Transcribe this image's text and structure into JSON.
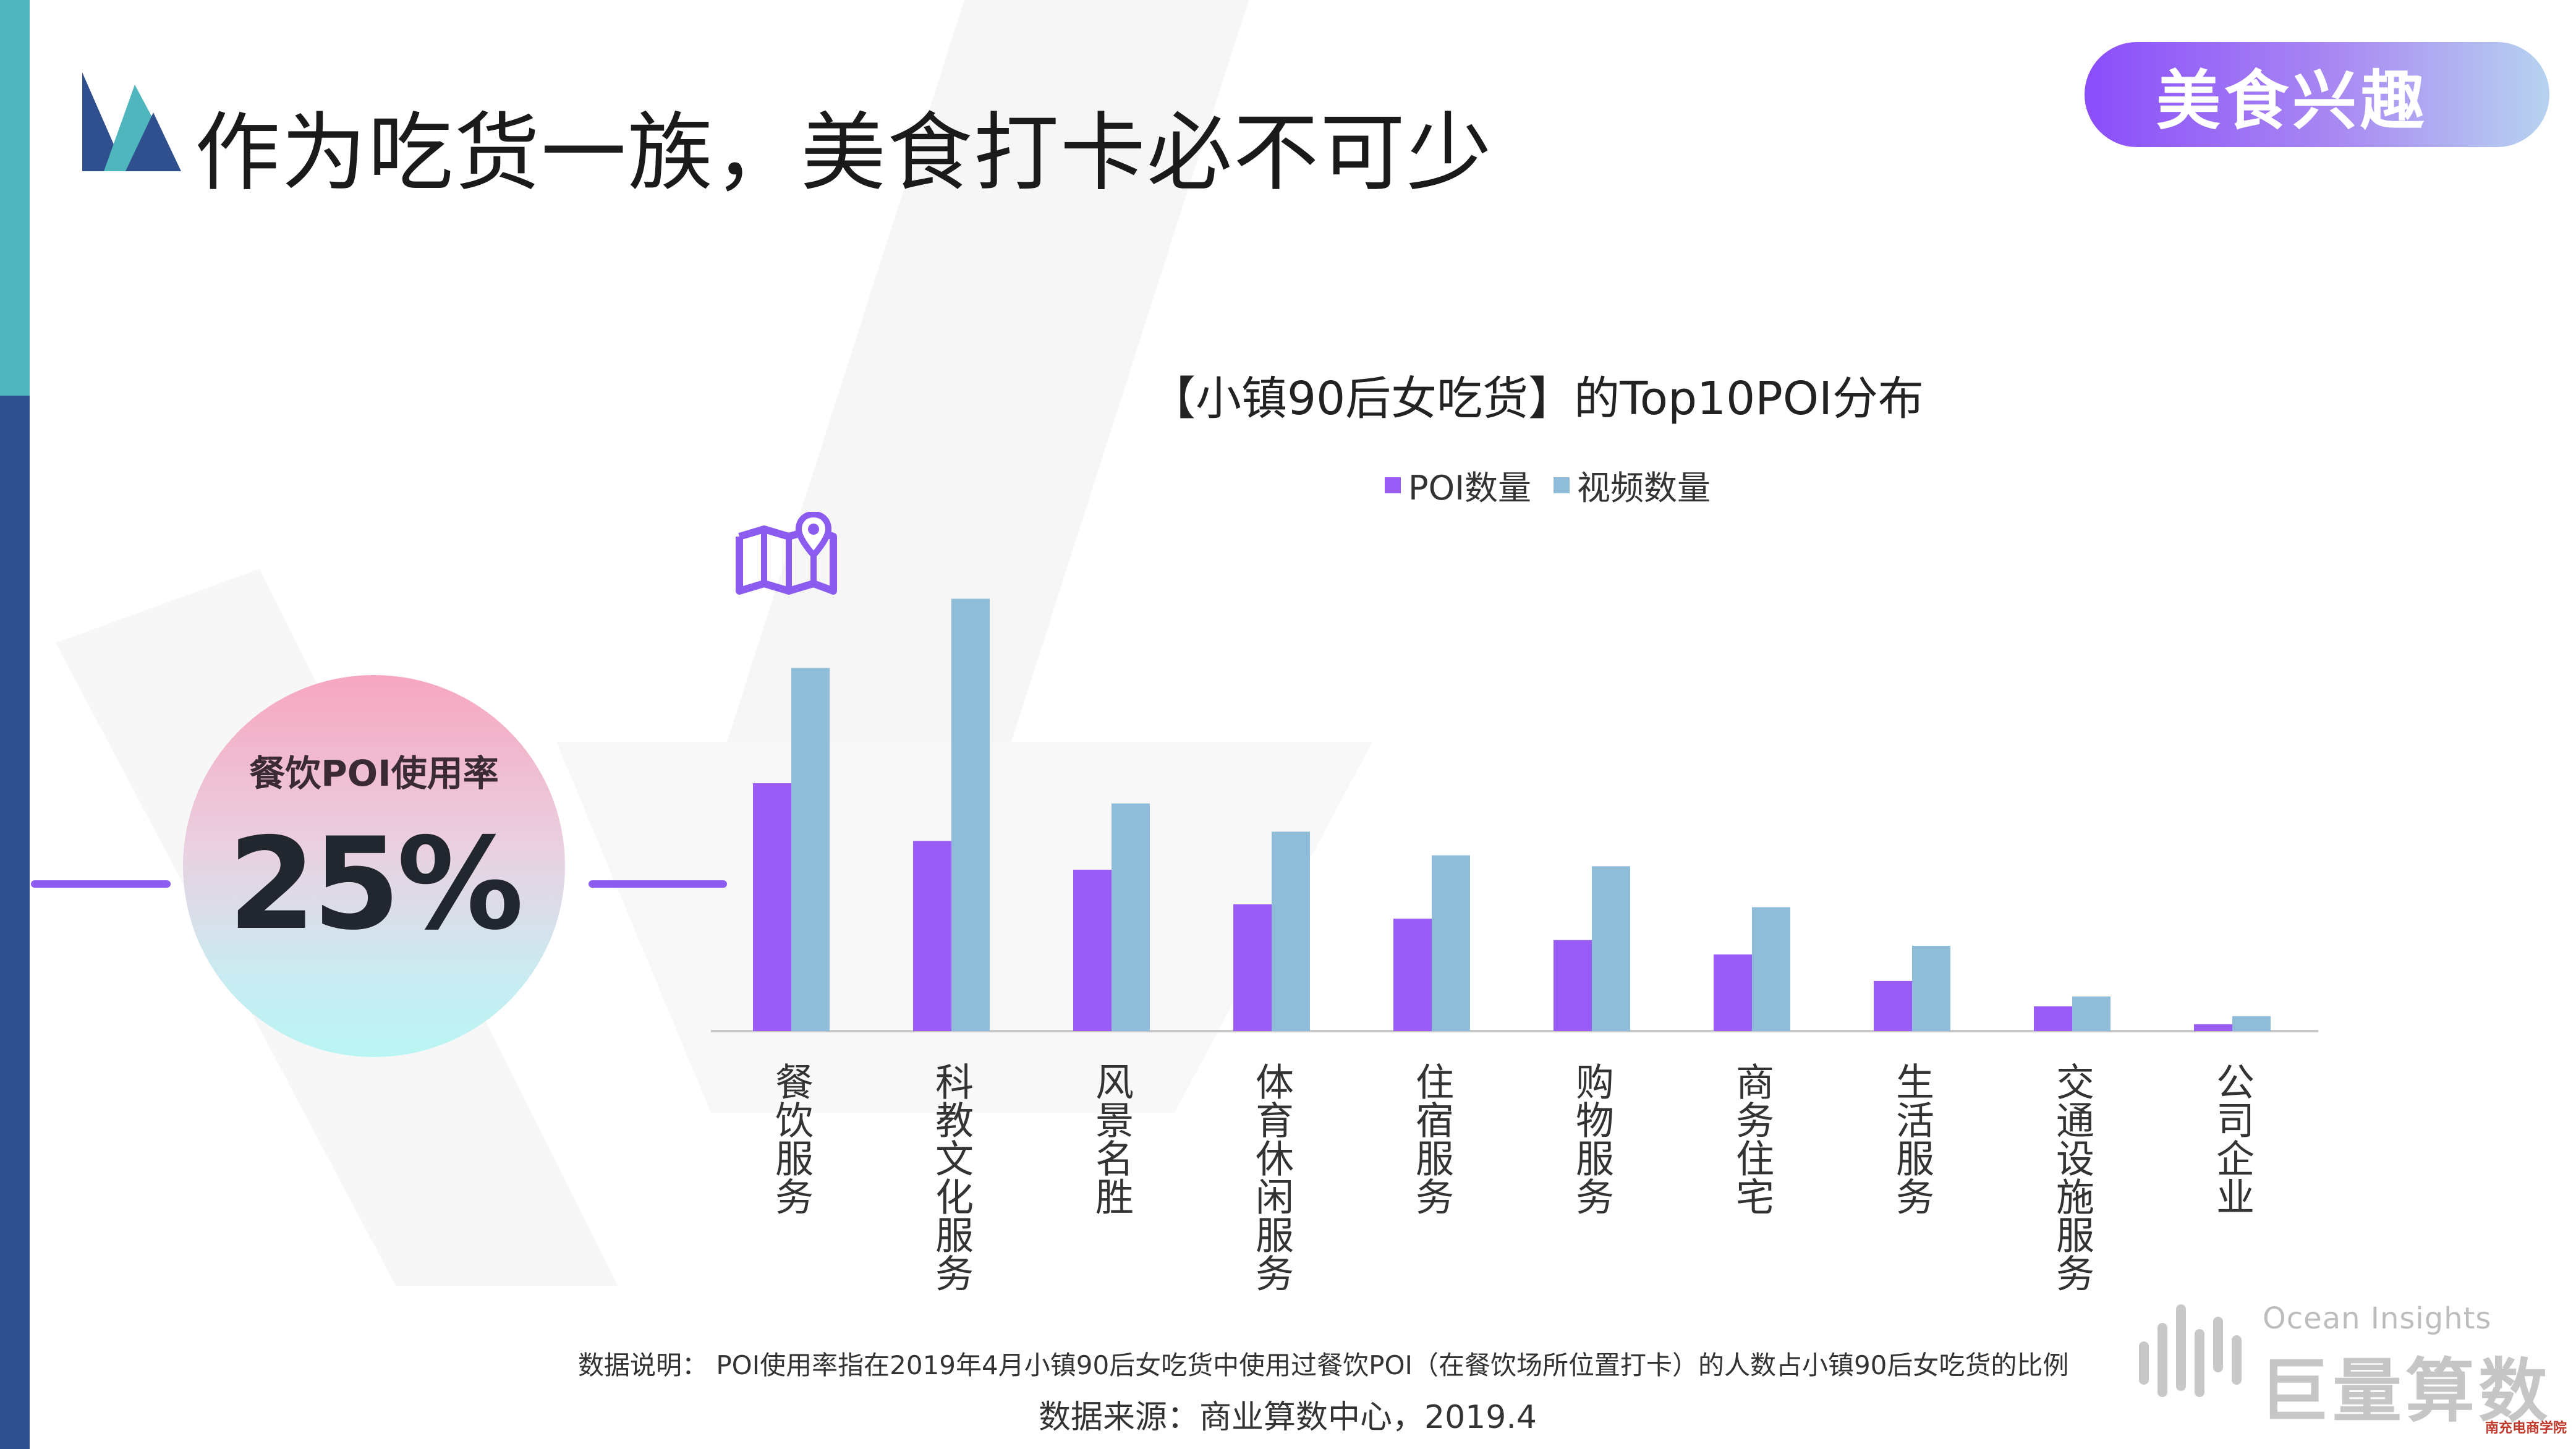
{
  "page": {
    "title": "作为吃货一族，美食打卡必不可少",
    "badge": "美食兴趣"
  },
  "stat": {
    "label": "餐饮POI使用率",
    "value": "25%"
  },
  "colors": {
    "poi": "#9a5cf7",
    "video": "#8fbcd8",
    "accent_teal": "#4fb6bd",
    "accent_blue": "#2f4f8f",
    "badge_start": "#8a4dfa",
    "badge_end": "#b7d3f0"
  },
  "icons": {
    "logo": "book-logo-icon",
    "map": "map-pin-icon",
    "brand": "sound-bars-icon"
  },
  "chart_data": {
    "type": "bar",
    "title": "【小镇90后女吃货】的Top10POI分布",
    "xlabel": "",
    "ylabel": "",
    "categories": [
      "餐饮服务",
      "科教文化服务",
      "风景名胜",
      "体育休闲服务",
      "住宿服务",
      "购物服务",
      "商务住宅",
      "生活服务",
      "交通设施服务",
      "公司企业"
    ],
    "series": [
      {
        "name": "POI数量",
        "values": [
          43,
          33,
          28,
          22,
          19.5,
          15.8,
          13.3,
          8.7,
          4.3,
          1.2
        ]
      },
      {
        "name": "视频数量",
        "values": [
          63,
          75,
          39.5,
          34.6,
          30.5,
          28.6,
          21.5,
          14.8,
          6,
          2.6
        ]
      }
    ],
    "ylim": [
      0,
      80
    ],
    "grid": false,
    "legend": "top"
  },
  "footer": {
    "note": "数据说明：  POI使用率指在2019年4月小镇90后女吃货中使用过餐饮POI（在餐饮场所位置打卡）的人数占小镇90后女吃货的比例",
    "source": "数据来源：商业算数中心，2019.4",
    "brand_en": "Ocean Insights",
    "brand_cn": "巨量算数",
    "stamp": "南充电商学院"
  }
}
